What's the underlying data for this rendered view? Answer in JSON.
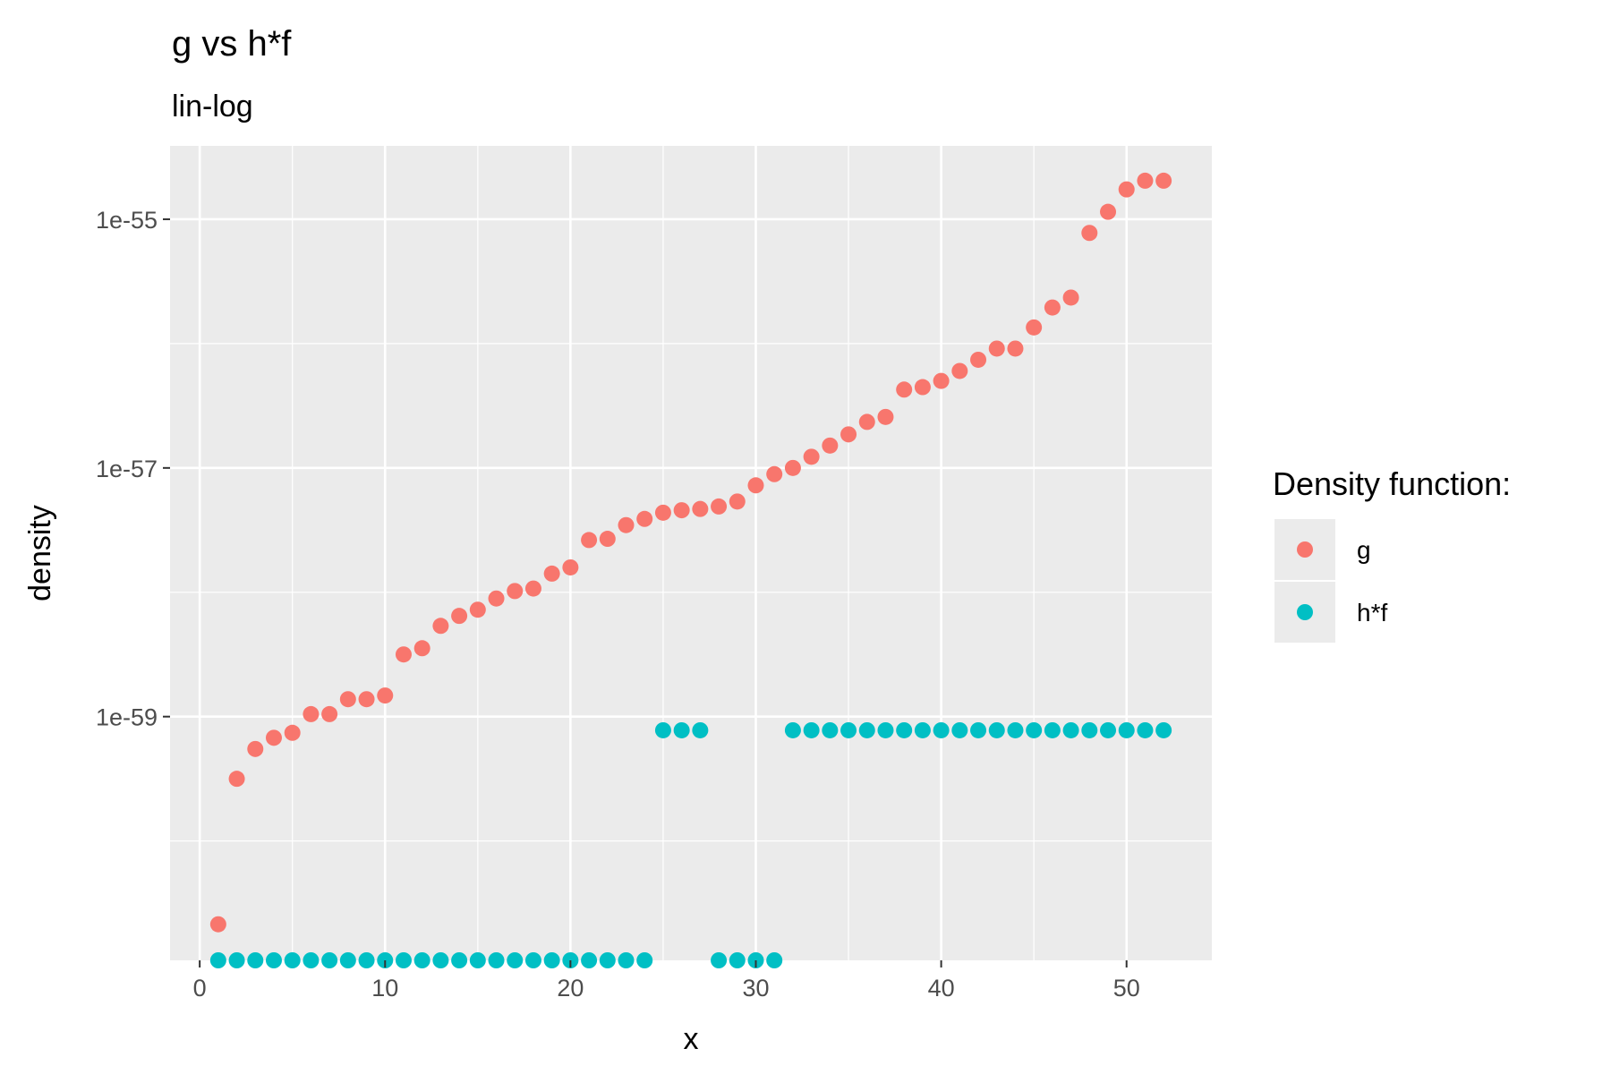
{
  "chart_data": {
    "type": "scatter",
    "title": "g vs h*f",
    "subtitle": "lin-log",
    "xlabel": "x",
    "ylabel": "density",
    "y_scale": "log10",
    "xlim": [
      -1.6,
      54.6
    ],
    "ylim_log10": [
      -60.96,
      -54.41
    ],
    "x_ticks": [
      0,
      10,
      20,
      30,
      40,
      50
    ],
    "y_ticks": [
      {
        "value_log10": -55,
        "label": "1e-55"
      },
      {
        "value_log10": -57,
        "label": "1e-57"
      },
      {
        "value_log10": -59,
        "label": "1e-59"
      }
    ],
    "grid": true,
    "legend": {
      "title": "Density function:",
      "position": "right",
      "entries": [
        {
          "label": "g",
          "color": "#F8766D"
        },
        {
          "label": "h*f",
          "color": "#00BFC4"
        }
      ]
    },
    "series": [
      {
        "name": "g",
        "color": "#F8766D",
        "x": [
          1,
          2,
          3,
          4,
          5,
          6,
          7,
          8,
          9,
          10,
          11,
          12,
          13,
          14,
          15,
          16,
          17,
          18,
          19,
          20,
          21,
          22,
          23,
          24,
          25,
          26,
          27,
          28,
          29,
          30,
          31,
          32,
          33,
          34,
          35,
          36,
          37,
          38,
          39,
          40,
          41,
          42,
          43,
          44,
          45,
          46,
          47,
          48,
          49,
          50,
          51,
          52
        ],
        "log10_y": [
          -60.67,
          -59.5,
          -59.26,
          -59.17,
          -59.13,
          -58.98,
          -58.98,
          -58.86,
          -58.86,
          -58.83,
          -58.5,
          -58.45,
          -58.27,
          -58.19,
          -58.14,
          -58.05,
          -57.99,
          -57.97,
          -57.85,
          -57.8,
          -57.58,
          -57.57,
          -57.46,
          -57.41,
          -57.36,
          -57.34,
          -57.33,
          -57.31,
          -57.27,
          -57.14,
          -57.05,
          -57.0,
          -56.91,
          -56.82,
          -56.73,
          -56.63,
          -56.59,
          -56.37,
          -56.35,
          -56.3,
          -56.22,
          -56.13,
          -56.04,
          -56.04,
          -55.87,
          -55.71,
          -55.63,
          -55.11,
          -54.94,
          -54.76,
          -54.69,
          -54.69
        ]
      },
      {
        "name": "h*f",
        "color": "#00BFC4",
        "x": [
          1,
          2,
          3,
          4,
          5,
          6,
          7,
          8,
          9,
          10,
          11,
          12,
          13,
          14,
          15,
          16,
          17,
          18,
          19,
          20,
          21,
          22,
          23,
          24,
          25,
          26,
          27,
          28,
          29,
          30,
          31,
          32,
          33,
          34,
          35,
          36,
          37,
          38,
          39,
          40,
          41,
          42,
          43,
          44,
          45,
          46,
          47,
          48,
          49,
          50,
          51,
          52
        ],
        "log10_y": [
          -60.96,
          -60.96,
          -60.96,
          -60.96,
          -60.96,
          -60.96,
          -60.96,
          -60.96,
          -60.96,
          -60.96,
          -60.96,
          -60.96,
          -60.96,
          -60.96,
          -60.96,
          -60.96,
          -60.96,
          -60.96,
          -60.96,
          -60.96,
          -60.96,
          -60.96,
          -60.96,
          -60.96,
          -59.11,
          -59.11,
          -59.11,
          -60.96,
          -60.96,
          -60.96,
          -60.96,
          -59.11,
          -59.11,
          -59.11,
          -59.11,
          -59.11,
          -59.11,
          -59.11,
          -59.11,
          -59.11,
          -59.11,
          -59.11,
          -59.11,
          -59.11,
          -59.11,
          -59.11,
          -59.11,
          -59.11,
          -59.11,
          -59.11,
          -59.11,
          -59.11
        ]
      }
    ]
  }
}
